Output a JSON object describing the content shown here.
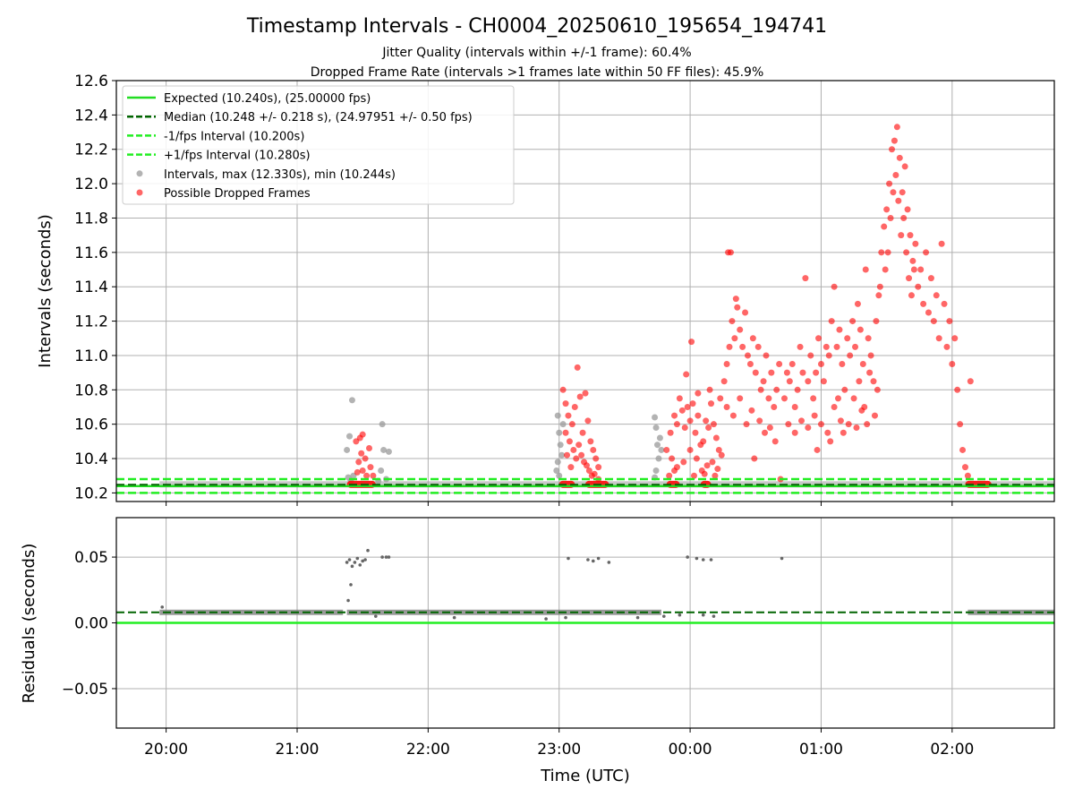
{
  "figure": {
    "title": "Timestamp Intervals - CH0004_20250610_195654_194741",
    "subtitle_1": "Jitter Quality (intervals within +/-1 frame): 60.4%",
    "subtitle_2": "Dropped Frame Rate (intervals >1 frames late within 50 FF files): 45.9%"
  },
  "chart_data": [
    {
      "type": "scatter",
      "panel": "top",
      "ylabel": "Intervals (seconds)",
      "xlabel": "",
      "ylim": [
        10.15,
        12.6
      ],
      "xlim_hours": [
        19.62,
        26.78
      ],
      "yticks": [
        10.2,
        10.4,
        10.6,
        10.8,
        11.0,
        11.2,
        11.4,
        11.6,
        11.8,
        12.0,
        12.2,
        12.4,
        12.6
      ],
      "grid": true,
      "legend_position": "upper-left",
      "colors": {
        "expected": "#22dd22",
        "median": "#006400",
        "interval_band": "#22ee22",
        "intervals": "#999999",
        "dropped": "#ff0000"
      },
      "lines": {
        "expected": 10.24,
        "median": 10.248,
        "minus_interval": 10.2,
        "plus_interval": 10.28
      },
      "legend": [
        {
          "label": "Expected (10.240s), (25.00000 fps)",
          "style": "solid",
          "color": "#22dd22"
        },
        {
          "label": "Median (10.248 +/- 0.218 s), (24.97951 +/- 0.50 fps)",
          "style": "dashed",
          "color": "#006400"
        },
        {
          "label": "-1/fps Interval (10.200s)",
          "style": "dashed",
          "color": "#22ee22"
        },
        {
          "label": "+1/fps Interval (10.280s)",
          "style": "dashed",
          "color": "#22ee22"
        },
        {
          "label": "Intervals, max (12.330s), min (10.244s)",
          "style": "dot",
          "color": "#999999"
        },
        {
          "label": "Possible Dropped Frames",
          "style": "dot",
          "color": "#ff0000"
        }
      ],
      "normal_baseline": {
        "value": 10.25,
        "segments": [
          [
            19.95,
            26.78
          ]
        ]
      },
      "gray_points": [
        [
          21.38,
          10.45
        ],
        [
          21.4,
          10.53
        ],
        [
          21.42,
          10.74
        ],
        [
          21.39,
          10.29
        ],
        [
          21.41,
          10.27
        ],
        [
          21.43,
          10.3
        ],
        [
          21.65,
          10.6
        ],
        [
          21.66,
          10.45
        ],
        [
          21.7,
          10.44
        ],
        [
          21.64,
          10.33
        ],
        [
          21.68,
          10.28
        ],
        [
          21.62,
          10.27
        ],
        [
          22.99,
          10.65
        ],
        [
          23.0,
          10.55
        ],
        [
          23.01,
          10.48
        ],
        [
          22.98,
          10.33
        ],
        [
          23.02,
          10.42
        ],
        [
          23.0,
          10.3
        ],
        [
          23.03,
          10.6
        ],
        [
          22.99,
          10.38
        ],
        [
          23.73,
          10.64
        ],
        [
          23.74,
          10.58
        ],
        [
          23.75,
          10.48
        ],
        [
          23.76,
          10.4
        ],
        [
          23.74,
          10.33
        ],
        [
          23.77,
          10.52
        ],
        [
          23.78,
          10.45
        ],
        [
          23.73,
          10.29
        ]
      ],
      "red_points": [
        [
          21.45,
          10.5
        ],
        [
          21.48,
          10.52
        ],
        [
          21.5,
          10.54
        ],
        [
          21.52,
          10.4
        ],
        [
          21.55,
          10.46
        ],
        [
          21.47,
          10.38
        ],
        [
          21.5,
          10.33
        ],
        [
          21.53,
          10.3
        ],
        [
          21.49,
          10.43
        ],
        [
          21.56,
          10.35
        ],
        [
          21.58,
          10.3
        ],
        [
          21.46,
          10.32
        ],
        [
          23.03,
          10.8
        ],
        [
          23.05,
          10.72
        ],
        [
          23.07,
          10.65
        ],
        [
          23.1,
          10.6
        ],
        [
          23.12,
          10.7
        ],
        [
          23.14,
          10.93
        ],
        [
          23.16,
          10.76
        ],
        [
          23.18,
          10.55
        ],
        [
          23.2,
          10.78
        ],
        [
          23.22,
          10.62
        ],
        [
          23.24,
          10.5
        ],
        [
          23.26,
          10.45
        ],
        [
          23.28,
          10.4
        ],
        [
          23.3,
          10.35
        ],
        [
          23.05,
          10.55
        ],
        [
          23.08,
          10.5
        ],
        [
          23.11,
          10.45
        ],
        [
          23.13,
          10.4
        ],
        [
          23.15,
          10.48
        ],
        [
          23.17,
          10.42
        ],
        [
          23.19,
          10.38
        ],
        [
          23.21,
          10.36
        ],
        [
          23.23,
          10.33
        ],
        [
          23.09,
          10.35
        ],
        [
          23.06,
          10.42
        ],
        [
          23.25,
          10.3
        ],
        [
          23.27,
          10.31
        ],
        [
          23.3,
          10.28
        ],
        [
          23.82,
          10.45
        ],
        [
          23.85,
          10.55
        ],
        [
          23.88,
          10.65
        ],
        [
          23.9,
          10.6
        ],
        [
          23.92,
          10.75
        ],
        [
          23.94,
          10.68
        ],
        [
          23.96,
          10.58
        ],
        [
          23.98,
          10.7
        ],
        [
          24.0,
          10.62
        ],
        [
          24.02,
          10.72
        ],
        [
          24.04,
          10.55
        ],
        [
          24.06,
          10.65
        ],
        [
          24.08,
          10.48
        ],
        [
          24.1,
          10.5
        ],
        [
          24.12,
          10.62
        ],
        [
          24.14,
          10.58
        ],
        [
          24.16,
          10.72
        ],
        [
          24.18,
          10.6
        ],
        [
          24.2,
          10.52
        ],
        [
          24.22,
          10.45
        ],
        [
          24.24,
          10.42
        ],
        [
          23.86,
          10.4
        ],
        [
          23.9,
          10.35
        ],
        [
          23.95,
          10.38
        ],
        [
          24.0,
          10.45
        ],
        [
          24.05,
          10.4
        ],
        [
          24.09,
          10.33
        ],
        [
          24.13,
          10.36
        ],
        [
          24.17,
          10.38
        ],
        [
          24.21,
          10.34
        ],
        [
          23.84,
          10.3
        ],
        [
          23.88,
          10.33
        ],
        [
          24.03,
          10.3
        ],
        [
          24.11,
          10.31
        ],
        [
          24.19,
          10.3
        ],
        [
          23.97,
          10.89
        ],
        [
          24.01,
          11.08
        ],
        [
          24.06,
          10.78
        ],
        [
          24.15,
          10.8
        ],
        [
          24.23,
          10.75
        ],
        [
          24.26,
          10.85
        ],
        [
          24.28,
          10.95
        ],
        [
          24.3,
          11.05
        ],
        [
          24.32,
          11.2
        ],
        [
          24.34,
          11.1
        ],
        [
          24.36,
          11.28
        ],
        [
          24.38,
          11.15
        ],
        [
          24.4,
          11.05
        ],
        [
          24.42,
          11.25
        ],
        [
          24.44,
          11.0
        ],
        [
          24.46,
          10.95
        ],
        [
          24.48,
          11.1
        ],
        [
          24.5,
          10.9
        ],
        [
          24.52,
          11.05
        ],
        [
          24.54,
          10.8
        ],
        [
          24.56,
          10.85
        ],
        [
          24.58,
          11.0
        ],
        [
          24.6,
          10.75
        ],
        [
          24.62,
          10.9
        ],
        [
          24.64,
          10.7
        ],
        [
          24.66,
          10.8
        ],
        [
          24.68,
          10.95
        ],
        [
          24.29,
          11.6
        ],
        [
          24.31,
          11.6
        ],
        [
          24.35,
          11.33
        ],
        [
          24.28,
          10.7
        ],
        [
          24.33,
          10.65
        ],
        [
          24.38,
          10.75
        ],
        [
          24.43,
          10.6
        ],
        [
          24.47,
          10.68
        ],
        [
          24.53,
          10.62
        ],
        [
          24.57,
          10.55
        ],
        [
          24.61,
          10.58
        ],
        [
          24.65,
          10.5
        ],
        [
          24.49,
          10.4
        ],
        [
          24.69,
          10.28
        ],
        [
          24.72,
          10.75
        ],
        [
          24.74,
          10.9
        ],
        [
          24.76,
          10.85
        ],
        [
          24.78,
          10.95
        ],
        [
          24.8,
          10.7
        ],
        [
          24.82,
          10.8
        ],
        [
          24.84,
          11.05
        ],
        [
          24.86,
          10.9
        ],
        [
          24.88,
          11.45
        ],
        [
          24.9,
          10.85
        ],
        [
          24.92,
          11.0
        ],
        [
          24.94,
          10.75
        ],
        [
          24.96,
          10.9
        ],
        [
          24.98,
          11.1
        ],
        [
          25.0,
          10.95
        ],
        [
          25.02,
          10.85
        ],
        [
          25.04,
          11.05
        ],
        [
          25.06,
          11.0
        ],
        [
          25.08,
          11.2
        ],
        [
          25.1,
          11.4
        ],
        [
          25.12,
          11.05
        ],
        [
          25.14,
          11.15
        ],
        [
          25.16,
          10.95
        ],
        [
          25.18,
          10.8
        ],
        [
          24.75,
          10.6
        ],
        [
          24.8,
          10.55
        ],
        [
          24.85,
          10.62
        ],
        [
          24.9,
          10.58
        ],
        [
          24.95,
          10.65
        ],
        [
          25.0,
          10.6
        ],
        [
          25.05,
          10.55
        ],
        [
          25.1,
          10.7
        ],
        [
          25.15,
          10.62
        ],
        [
          24.97,
          10.45
        ],
        [
          25.07,
          10.5
        ],
        [
          25.13,
          10.75
        ],
        [
          25.2,
          11.1
        ],
        [
          25.22,
          11.0
        ],
        [
          25.24,
          11.2
        ],
        [
          25.26,
          11.05
        ],
        [
          25.28,
          11.3
        ],
        [
          25.3,
          11.15
        ],
        [
          25.32,
          10.95
        ],
        [
          25.34,
          11.5
        ],
        [
          25.36,
          11.1
        ],
        [
          25.38,
          11.0
        ],
        [
          25.4,
          10.85
        ],
        [
          25.42,
          11.2
        ],
        [
          25.44,
          11.35
        ],
        [
          25.46,
          11.6
        ],
        [
          25.48,
          11.75
        ],
        [
          25.5,
          11.85
        ],
        [
          25.52,
          12.0
        ],
        [
          25.54,
          12.2
        ],
        [
          25.56,
          12.25
        ],
        [
          25.58,
          12.33
        ],
        [
          25.6,
          12.15
        ],
        [
          25.62,
          11.95
        ],
        [
          25.64,
          12.1
        ],
        [
          25.66,
          11.85
        ],
        [
          25.68,
          11.7
        ],
        [
          25.7,
          11.55
        ],
        [
          25.72,
          11.65
        ],
        [
          25.74,
          11.4
        ],
        [
          25.76,
          11.5
        ],
        [
          25.78,
          11.3
        ],
        [
          25.8,
          11.6
        ],
        [
          25.82,
          11.25
        ],
        [
          25.84,
          11.45
        ],
        [
          25.86,
          11.2
        ],
        [
          25.88,
          11.35
        ],
        [
          25.9,
          11.1
        ],
        [
          25.92,
          11.65
        ],
        [
          25.94,
          11.3
        ],
        [
          25.96,
          11.05
        ],
        [
          25.98,
          11.2
        ],
        [
          26.0,
          10.95
        ],
        [
          26.02,
          11.1
        ],
        [
          26.04,
          10.8
        ],
        [
          26.06,
          10.6
        ],
        [
          26.08,
          10.45
        ],
        [
          26.1,
          10.35
        ],
        [
          26.12,
          10.3
        ],
        [
          26.14,
          10.85
        ],
        [
          25.49,
          11.5
        ],
        [
          25.51,
          11.6
        ],
        [
          25.53,
          11.8
        ],
        [
          25.55,
          11.95
        ],
        [
          25.57,
          12.05
        ],
        [
          25.59,
          11.9
        ],
        [
          25.61,
          11.7
        ],
        [
          25.63,
          11.8
        ],
        [
          25.65,
          11.6
        ],
        [
          25.67,
          11.45
        ],
        [
          25.69,
          11.35
        ],
        [
          25.71,
          11.5
        ],
        [
          25.45,
          11.4
        ],
        [
          25.25,
          10.75
        ],
        [
          25.29,
          10.85
        ],
        [
          25.33,
          10.7
        ],
        [
          25.37,
          10.9
        ],
        [
          25.41,
          10.65
        ],
        [
          25.43,
          10.8
        ],
        [
          25.17,
          10.55
        ],
        [
          25.21,
          10.6
        ],
        [
          25.27,
          10.58
        ],
        [
          25.31,
          10.68
        ],
        [
          25.35,
          10.6
        ]
      ],
      "dropped_baseline": {
        "value": 10.25,
        "segments": [
          [
            21.38,
            21.6
          ],
          [
            23.0,
            23.12
          ],
          [
            23.2,
            23.38
          ],
          [
            23.82,
            23.92
          ],
          [
            24.08,
            24.16
          ],
          [
            26.1,
            26.3
          ]
        ]
      }
    },
    {
      "type": "scatter",
      "panel": "bottom",
      "ylabel": "Residuals (seconds)",
      "xlabel": "Time (UTC)",
      "ylim": [
        -0.08,
        0.08
      ],
      "yticks": [
        -0.05,
        0.0,
        0.05
      ],
      "ytick_labels": [
        "−0.05",
        "0.00",
        "0.05"
      ],
      "xticks": [
        20,
        21,
        22,
        23,
        24,
        25,
        26
      ],
      "xtick_labels": [
        "20:00",
        "21:00",
        "22:00",
        "23:00",
        "00:00",
        "01:00",
        "02:00"
      ],
      "grid": true,
      "lines": {
        "zero": 0.0,
        "median": 0.008
      },
      "baseline": {
        "value": 0.008,
        "segments": [
          [
            19.95,
            21.35
          ],
          [
            21.38,
            23.78
          ],
          [
            26.12,
            26.78
          ]
        ]
      },
      "points": [
        [
          19.97,
          0.012
        ],
        [
          21.38,
          0.046
        ],
        [
          21.4,
          0.048
        ],
        [
          21.42,
          0.043
        ],
        [
          21.44,
          0.046
        ],
        [
          21.46,
          0.049
        ],
        [
          21.48,
          0.044
        ],
        [
          21.5,
          0.047
        ],
        [
          21.52,
          0.048
        ],
        [
          21.54,
          0.055
        ],
        [
          21.41,
          0.029
        ],
        [
          21.39,
          0.017
        ],
        [
          21.65,
          0.05
        ],
        [
          21.68,
          0.05
        ],
        [
          21.7,
          0.05
        ],
        [
          23.07,
          0.049
        ],
        [
          23.22,
          0.048
        ],
        [
          23.26,
          0.047
        ],
        [
          23.3,
          0.049
        ],
        [
          23.38,
          0.046
        ],
        [
          23.98,
          0.05
        ],
        [
          24.05,
          0.049
        ],
        [
          24.1,
          0.048
        ],
        [
          24.16,
          0.048
        ],
        [
          24.7,
          0.049
        ],
        [
          21.6,
          0.005
        ],
        [
          22.2,
          0.004
        ],
        [
          22.9,
          0.003
        ],
        [
          23.05,
          0.004
        ],
        [
          23.6,
          0.004
        ],
        [
          23.8,
          0.005
        ],
        [
          23.92,
          0.006
        ],
        [
          24.1,
          0.006
        ],
        [
          24.18,
          0.005
        ]
      ]
    }
  ]
}
